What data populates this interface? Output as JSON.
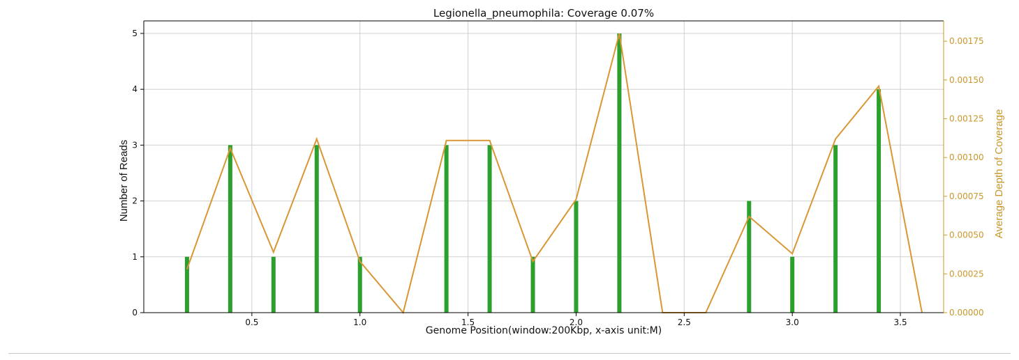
{
  "chart_data": {
    "type": "bar",
    "title": "Legionella_pneumophila: Coverage 0.07%",
    "xlabel": "Genome Position(window:200Kbp, x-axis unit:M)",
    "ylabel": "Number of Reads",
    "y2label": "Average Depth of Coverage",
    "xlim": [
      0.0,
      3.7
    ],
    "ylim": [
      0,
      5.0
    ],
    "y2lim": [
      0,
      0.0018
    ],
    "xticks": [
      0.5,
      1.0,
      1.5,
      2.0,
      2.5,
      3.0,
      3.5
    ],
    "xtick_labels": [
      "0.5",
      "1.0",
      "1.5",
      "2.0",
      "2.5",
      "3.0",
      "3.5"
    ],
    "yticks": [
      0,
      1,
      2,
      3,
      4,
      5
    ],
    "ytick_labels": [
      "0",
      "1",
      "2",
      "3",
      "4",
      "5"
    ],
    "y2ticks": [
      0,
      0.00025,
      0.0005,
      0.00075,
      0.001,
      0.00125,
      0.0015,
      0.00175
    ],
    "y2tick_labels": [
      "0.00000",
      "0.00025",
      "0.00050",
      "0.00075",
      "0.00100",
      "0.00125",
      "0.00150",
      "0.00175"
    ],
    "grid": true,
    "series": [
      {
        "kind": "bar",
        "x": [
          0.2,
          0.4,
          0.6,
          0.8,
          1.0,
          1.4,
          1.6,
          1.8,
          2.0,
          2.2,
          2.8,
          3.0,
          3.2,
          3.4
        ],
        "values": [
          1,
          3,
          1,
          3,
          1,
          3,
          3,
          1,
          2,
          5,
          2,
          1,
          3,
          4
        ],
        "color": "#2ca02c"
      },
      {
        "kind": "line",
        "axis": "right",
        "x": [
          0.2,
          0.4,
          0.6,
          0.8,
          1.0,
          1.2,
          1.4,
          1.6,
          1.8,
          2.0,
          2.2,
          2.4,
          2.6,
          2.8,
          3.0,
          3.2,
          3.4,
          3.6
        ],
        "values": [
          0.00028,
          0.00106,
          0.00039,
          0.00112,
          0.00033,
          0.0,
          0.00111,
          0.00111,
          0.00033,
          0.00073,
          0.0018,
          0.0,
          0.0,
          0.00062,
          0.00038,
          0.00112,
          0.00146,
          0.0
        ],
        "color": "#d99633"
      }
    ],
    "colors": {
      "bar": "#2ca02c",
      "line": "#d99633",
      "right_axis": "#c8972a",
      "text": "#111111",
      "grid": "#d0d0d0"
    }
  }
}
